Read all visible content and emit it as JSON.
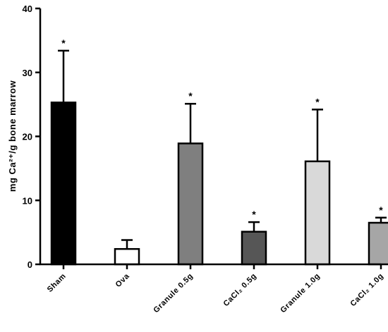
{
  "chart_data": {
    "type": "bar",
    "title": "",
    "xlabel": "",
    "ylabel": "mg Ca²⁺/g bone marrow",
    "ylim": [
      0,
      40
    ],
    "yticks": [
      0,
      10,
      20,
      30,
      40
    ],
    "grid": false,
    "categories": [
      "Sham",
      "Ova",
      "Granule 0.5g",
      "CaCl₂ 0.5g",
      "Granule 1.0g",
      "CaCl₂ 1.0g"
    ],
    "values": [
      25.3,
      2.4,
      18.9,
      5.1,
      16.1,
      6.5
    ],
    "error_upper": [
      8.1,
      1.4,
      6.2,
      1.5,
      8.1,
      0.8
    ],
    "annotations": [
      "*",
      "",
      "*",
      "*",
      "*",
      "*"
    ],
    "bar_fill_colors": [
      "#000000",
      "#ffffff",
      "#7f7f7f",
      "#565656",
      "#d9d9d9",
      "#a6a6a6"
    ],
    "bar_edge_color": "#000000",
    "axis_color": "#000000"
  }
}
